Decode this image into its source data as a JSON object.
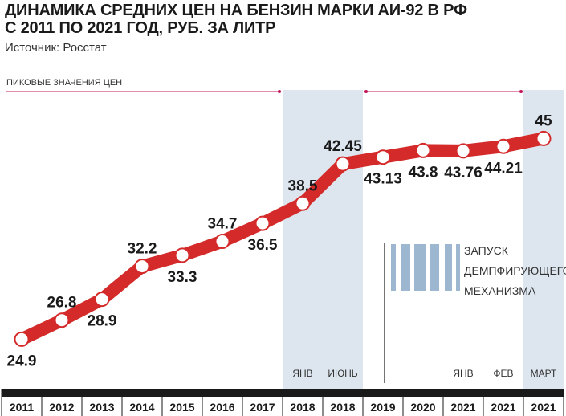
{
  "title_line1": "ДИНАМИКА СРЕДНИХ ЦЕН НА БЕНЗИН МАРКИ АИ-92 В РФ",
  "title_line2": "С 2011 ПО 2021 ГОД, РУБ. ЗА ЛИТР",
  "source": "Источник: Росстат",
  "peak_label": "ПИКОВЫЕ ЗНАЧЕНИЯ ЦЕН",
  "annotation": [
    "ЗАПУСК",
    "ДЕМПФИРУЮЩЕГО",
    "МЕХАНИЗМА"
  ],
  "colors": {
    "line": "#d42a2a",
    "highlight": "#dde6ef",
    "axis": "#1a1a1a",
    "accent": "#c2185b",
    "logo": "#9db7d0"
  },
  "chart_data": {
    "type": "line",
    "title": "ДИНАМИКА СРЕДНИХ ЦЕН НА БЕНЗИН МАРКИ АИ-92 В РФ С 2011 ПО 2021 ГОД, РУБ. ЗА ЛИТР",
    "categories": [
      "2011",
      "2012",
      "2013",
      "2014",
      "2015",
      "2016",
      "2017",
      "2018",
      "2018",
      "2019",
      "2020",
      "2021",
      "2021",
      "2021"
    ],
    "sublabels": [
      "",
      "",
      "",
      "",
      "",
      "",
      "",
      "ЯНВ",
      "ИЮНЬ",
      "",
      "",
      "ЯНВ",
      "ФЕВ",
      "МАРТ"
    ],
    "labels": [
      "24.9",
      "26.8",
      "28.9",
      "32.2",
      "33.3",
      "34.7",
      "36.5",
      "38.5",
      "42.45",
      "43.13",
      "43.8",
      "43.76",
      "44.21",
      "45"
    ],
    "values": [
      24.9,
      26.8,
      28.9,
      32.2,
      33.3,
      34.7,
      36.5,
      38.5,
      42.45,
      43.13,
      43.8,
      43.76,
      44.21,
      45
    ],
    "highlighted_indices": [
      7,
      8,
      13
    ],
    "label_positions": [
      "below",
      "above",
      "below",
      "above",
      "below",
      "above",
      "below",
      "above",
      "above",
      "below",
      "below",
      "below",
      "below",
      "above"
    ],
    "ylim": [
      23,
      46
    ],
    "grid": false
  }
}
